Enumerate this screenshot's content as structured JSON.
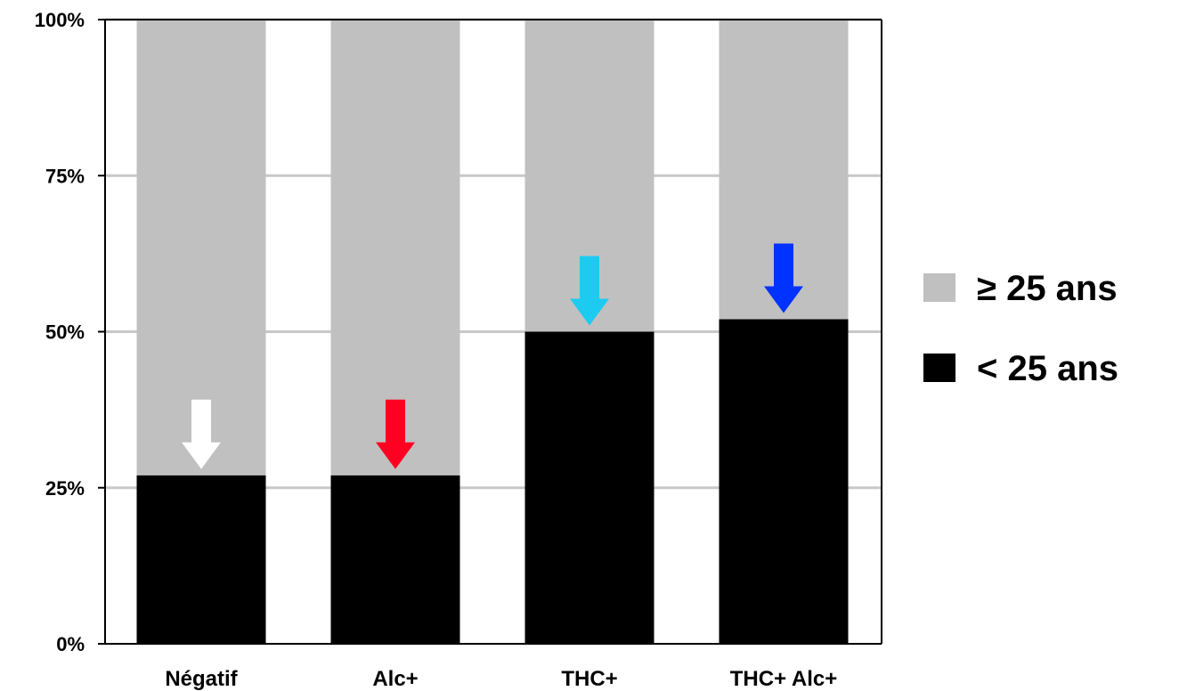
{
  "chart_data": {
    "type": "bar",
    "stacked": true,
    "normalized": true,
    "categories": [
      "Négatif",
      "Alc+",
      "THC+",
      "THC+ Alc+"
    ],
    "series": [
      {
        "name": "< 25 ans",
        "values": [
          27,
          27,
          50,
          52
        ],
        "color": "#000000"
      },
      {
        "name": "≥ 25 ans",
        "values": [
          73,
          73,
          50,
          48
        ],
        "color": "#c0c0c0"
      }
    ],
    "y_ticks": [
      "0%",
      "25%",
      "50%",
      "75%",
      "100%"
    ],
    "ylim": [
      0,
      100
    ],
    "grid": true,
    "legend": {
      "placement": "right",
      "entries": [
        {
          "label": "≥ 25 ans",
          "color": "#c0c0c0"
        },
        {
          "label": "< 25 ans",
          "color": "#000000"
        }
      ]
    },
    "annotations": {
      "type": "down-arrow",
      "colors": [
        "#ffffff",
        "#ff0022",
        "#1ecbf0",
        "#0033ff"
      ]
    }
  }
}
